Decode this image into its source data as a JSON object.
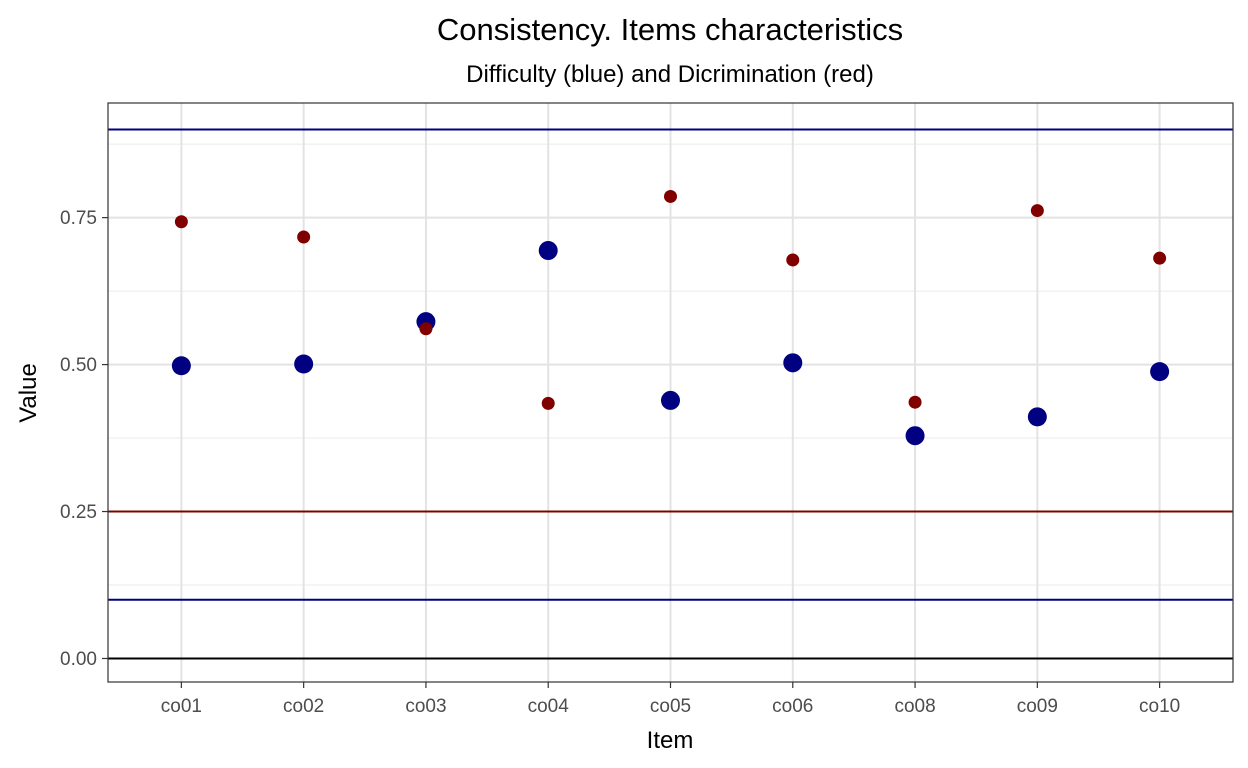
{
  "chart_data": {
    "type": "scatter",
    "title": "Consistency. Items characteristics",
    "subtitle": "Difficulty (blue) and Dicrimination (red)",
    "xlabel": "Item",
    "ylabel": "Value",
    "categories": [
      "co01",
      "co02",
      "co03",
      "co04",
      "co05",
      "co06",
      "co08",
      "co09",
      "co10"
    ],
    "ylim": [
      -0.04,
      0.945
    ],
    "yticks": [
      0.0,
      0.25,
      0.5,
      0.75
    ],
    "ytick_labels": [
      "0.00",
      "0.25",
      "0.50",
      "0.75"
    ],
    "grid": true,
    "series": [
      {
        "name": "Difficulty",
        "color": "#000080",
        "values": [
          0.498,
          0.501,
          0.573,
          0.694,
          0.439,
          0.503,
          0.379,
          0.411,
          0.488
        ]
      },
      {
        "name": "Dicrimination",
        "color": "#800000",
        "values": [
          0.743,
          0.717,
          0.561,
          0.434,
          0.786,
          0.678,
          0.436,
          0.762,
          0.681
        ]
      }
    ],
    "reference_lines": [
      {
        "name": "difficulty-upper-threshold",
        "y": 0.9,
        "color": "#000080"
      },
      {
        "name": "discrimination-threshold",
        "y": 0.25,
        "color": "#800000"
      },
      {
        "name": "difficulty-lower-threshold",
        "y": 0.1,
        "color": "#000080"
      },
      {
        "name": "zero-line",
        "y": 0.0,
        "color": "#000000"
      }
    ]
  }
}
